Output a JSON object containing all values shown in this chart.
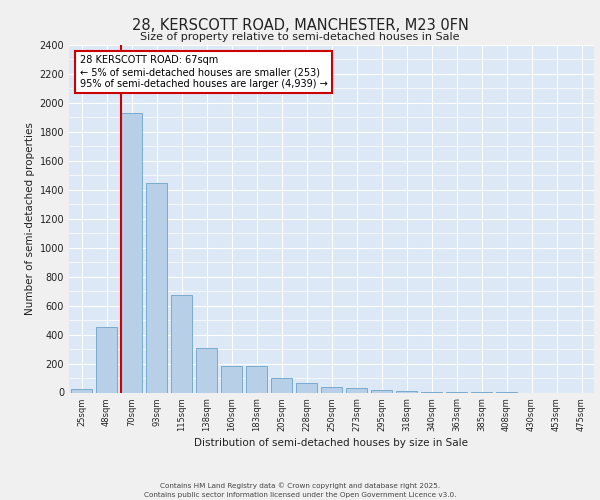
{
  "title": "28, KERSCOTT ROAD, MANCHESTER, M23 0FN",
  "subtitle": "Size of property relative to semi-detached houses in Sale",
  "xlabel": "Distribution of semi-detached houses by size in Sale",
  "ylabel": "Number of semi-detached properties",
  "categories": [
    "25sqm",
    "48sqm",
    "70sqm",
    "93sqm",
    "115sqm",
    "138sqm",
    "160sqm",
    "183sqm",
    "205sqm",
    "228sqm",
    "250sqm",
    "273sqm",
    "295sqm",
    "318sqm",
    "340sqm",
    "363sqm",
    "385sqm",
    "408sqm",
    "430sqm",
    "453sqm",
    "475sqm"
  ],
  "values": [
    25,
    455,
    1930,
    1450,
    670,
    305,
    185,
    185,
    100,
    65,
    35,
    28,
    15,
    8,
    3,
    2,
    1,
    1,
    0,
    0,
    0
  ],
  "bar_color": "#b8cfe8",
  "bar_edge_color": "#7aaad0",
  "vline_color": "#cc0000",
  "annotation_box_color": "#cc0000",
  "annotation_text": "28 KERSCOTT ROAD: 67sqm\n← 5% of semi-detached houses are smaller (253)\n95% of semi-detached houses are larger (4,939) →",
  "ylim": [
    0,
    2400
  ],
  "yticks": [
    0,
    200,
    400,
    600,
    800,
    1000,
    1200,
    1400,
    1600,
    1800,
    2000,
    2200,
    2400
  ],
  "plot_bg_color": "#dce8f5",
  "fig_bg_color": "#f0f0f0",
  "grid_color": "#ffffff",
  "footer_line1": "Contains HM Land Registry data © Crown copyright and database right 2025.",
  "footer_line2": "Contains public sector information licensed under the Open Government Licence v3.0."
}
